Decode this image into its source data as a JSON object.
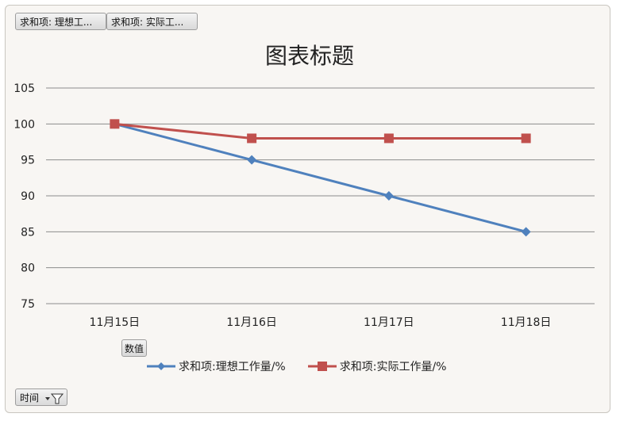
{
  "field_buttons": {
    "series1": "求和项: 理想工...",
    "series2": "求和项: 实际工...",
    "values": "数值",
    "axis": "时间"
  },
  "colors": {
    "series1": "#4f81bd",
    "series2": "#c0504d",
    "grid": "#8c8c8c",
    "plot_bg": "#f8f6f3"
  },
  "chart_data": {
    "type": "line",
    "title": "图表标题",
    "categories": [
      "11月15日",
      "11月16日",
      "11月17日",
      "11月18日"
    ],
    "series": [
      {
        "name": "求和项:理想工作量/%",
        "values": [
          100,
          95,
          90,
          85
        ],
        "marker": "diamond"
      },
      {
        "name": "求和项:实际工作量/%",
        "values": [
          100,
          98,
          98,
          98
        ],
        "marker": "square"
      }
    ],
    "ylim": [
      75,
      105
    ],
    "yticks": [
      75,
      80,
      85,
      90,
      95,
      100,
      105
    ],
    "grid": true,
    "legend": "bottom"
  }
}
